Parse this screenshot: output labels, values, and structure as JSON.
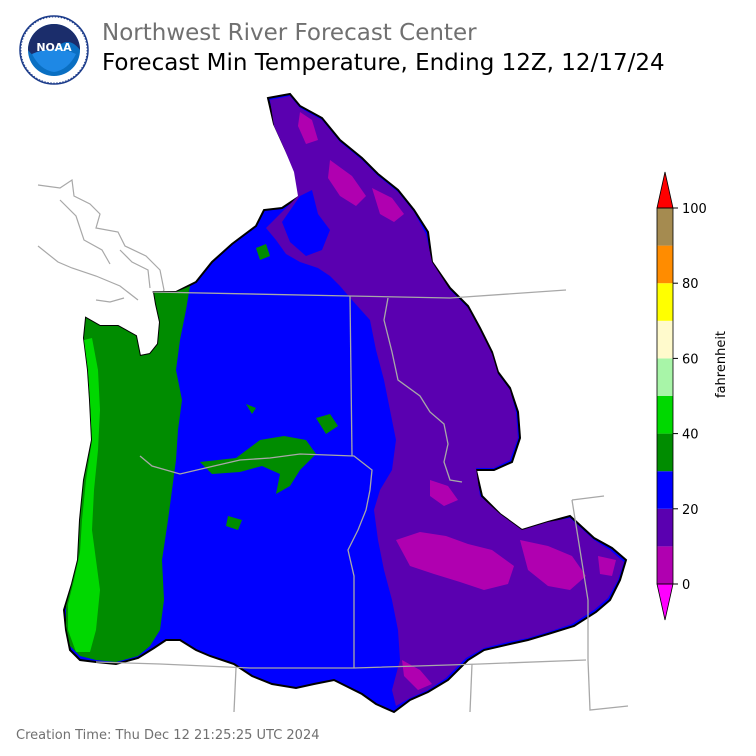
{
  "header": {
    "center_name": "Northwest River Forecast Center",
    "map_title": "Forecast Min Temperature, Ending 12Z, 12/17/24"
  },
  "logo": {
    "text": "NOAA",
    "icon": "noaa-logo-icon"
  },
  "footer": {
    "creation_time": "Creation Time: Thu Dec 12 21:25:25 UTC 2024"
  },
  "legend": {
    "unit_label": "fahrenheit",
    "ticks": [
      "0",
      "20",
      "40",
      "60",
      "80",
      "100"
    ],
    "bins": [
      {
        "range": "0-10",
        "color": "#b000b0"
      },
      {
        "range": "10-20",
        "color": "#5a00b0"
      },
      {
        "range": "20-30",
        "color": "#0000ff"
      },
      {
        "range": "30-40",
        "color": "#008c00"
      },
      {
        "range": "40-50",
        "color": "#00d800"
      },
      {
        "range": "50-60",
        "color": "#a8f5a8"
      },
      {
        "range": "60-70",
        "color": "#fffacc"
      },
      {
        "range": "70-80",
        "color": "#ffff00"
      },
      {
        "range": "80-90",
        "color": "#ff8c00"
      },
      {
        "range": "90-100",
        "color": "#a58b50"
      }
    ],
    "under_color": "#ff00ff",
    "over_color": "#ff0000"
  }
}
